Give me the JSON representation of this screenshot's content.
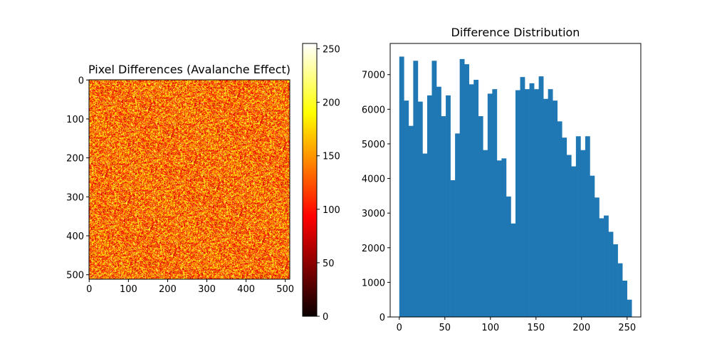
{
  "chart_data": [
    {
      "type": "heatmap",
      "title": "Pixel Differences (Avalanche Effect)",
      "xlim": [
        0,
        511
      ],
      "ylim": [
        511,
        0
      ],
      "xticks": [
        0,
        100,
        200,
        300,
        400,
        500
      ],
      "yticks": [
        0,
        100,
        200,
        300,
        400,
        500
      ],
      "colormap": "hot",
      "colorbar": {
        "range": [
          0,
          255
        ],
        "ticks": [
          0,
          50,
          100,
          150,
          200,
          250
        ]
      },
      "value_distribution": "random 0-255 noise, predominantly orange/red tones"
    },
    {
      "type": "bar",
      "title": "Difference Distribution",
      "xlim": [
        -10,
        265
      ],
      "ylim": [
        0,
        7900
      ],
      "xticks": [
        0,
        50,
        100,
        150,
        200,
        250
      ],
      "yticks": [
        0,
        1000,
        2000,
        3000,
        4000,
        5000,
        6000,
        7000
      ],
      "bar_color": "#1f77b4",
      "bin_start": 0,
      "bin_width": 5.1,
      "values": [
        7520,
        6250,
        5520,
        7400,
        6220,
        4720,
        6400,
        7400,
        6650,
        5800,
        6400,
        3950,
        5300,
        7450,
        7300,
        6720,
        6850,
        5800,
        4820,
        6450,
        6580,
        4520,
        4580,
        3480,
        2700,
        6550,
        6930,
        6580,
        6750,
        6580,
        6950,
        6300,
        6580,
        6250,
        5650,
        5180,
        4680,
        4350,
        5220,
        4820,
        5220,
        4080,
        3450,
        2850,
        2930,
        2460,
        2100,
        1550,
        1050,
        500
      ]
    }
  ]
}
